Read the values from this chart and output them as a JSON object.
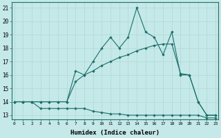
{
  "xlabel": "Humidex (Indice chaleur)",
  "background_color": "#c5e8e8",
  "line_color": "#1a6e6a",
  "grid_color": "#b0d8d8",
  "x_ticks": [
    0,
    1,
    2,
    3,
    4,
    5,
    6,
    7,
    8,
    9,
    10,
    11,
    12,
    13,
    14,
    15,
    16,
    17,
    18,
    19,
    20,
    21,
    22,
    23
  ],
  "y_ticks": [
    13,
    14,
    15,
    16,
    17,
    18,
    19,
    20,
    21
  ],
  "xlim": [
    -0.3,
    23.3
  ],
  "ylim": [
    12.7,
    21.4
  ],
  "line1_x": [
    0,
    1,
    2,
    3,
    4,
    5,
    6,
    7,
    8,
    9,
    10,
    11,
    12,
    13,
    14,
    15,
    16,
    17,
    18,
    19,
    20,
    21,
    22,
    23
  ],
  "line1_y": [
    14.0,
    14.0,
    14.0,
    14.0,
    14.0,
    14.0,
    14.0,
    15.5,
    16.0,
    16.3,
    16.7,
    17.0,
    17.3,
    17.5,
    17.8,
    18.0,
    18.2,
    18.3,
    18.3,
    16.1,
    16.0,
    14.0,
    13.0,
    13.0
  ],
  "line2_x": [
    0,
    1,
    2,
    3,
    4,
    5,
    6,
    7,
    8,
    9,
    10,
    11,
    12,
    13,
    14,
    15,
    16,
    17,
    18,
    19,
    20,
    21,
    22,
    23
  ],
  "line2_y": [
    14.0,
    14.0,
    14.0,
    14.0,
    14.0,
    14.0,
    14.0,
    16.3,
    16.0,
    17.0,
    18.0,
    18.8,
    18.0,
    18.8,
    21.0,
    19.2,
    18.8,
    17.5,
    19.2,
    16.0,
    16.0,
    14.0,
    13.0,
    13.0
  ],
  "line3_x": [
    0,
    1,
    2,
    3,
    4,
    5,
    6,
    7,
    8,
    9,
    10,
    11,
    12,
    13,
    14,
    15,
    16,
    17,
    18,
    19,
    20,
    21,
    22,
    23
  ],
  "line3_y": [
    14.0,
    14.0,
    14.0,
    13.5,
    13.5,
    13.5,
    13.5,
    13.5,
    13.5,
    13.3,
    13.2,
    13.1,
    13.1,
    13.0,
    13.0,
    13.0,
    13.0,
    13.0,
    13.0,
    13.0,
    13.0,
    13.0,
    12.8,
    12.8
  ]
}
